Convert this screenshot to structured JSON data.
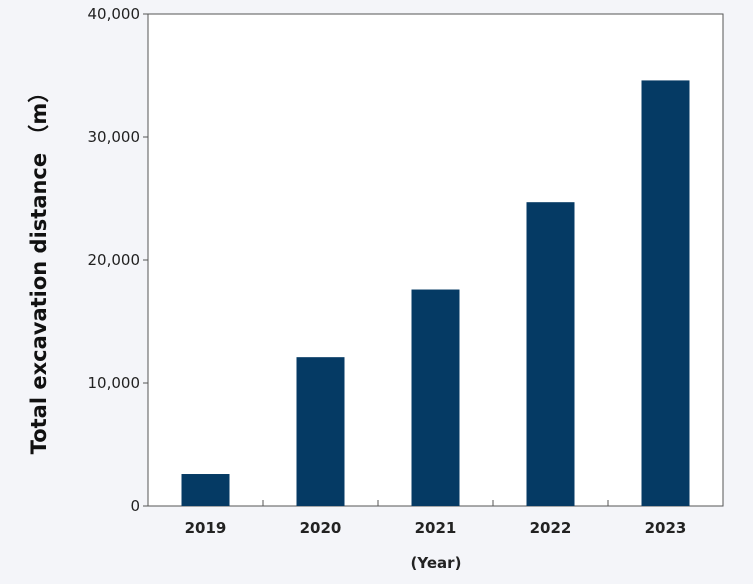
{
  "chart_data": {
    "type": "bar",
    "categories": [
      "2019",
      "2020",
      "2021",
      "2022",
      "2023"
    ],
    "values": [
      2600,
      12100,
      17600,
      24700,
      34600
    ],
    "title": "",
    "xlabel": "(Year)",
    "ylabel": "Total excavation distance （m）",
    "ylim": [
      0,
      40000
    ],
    "yticks": [
      0,
      10000,
      20000,
      30000,
      40000
    ],
    "ytick_labels": [
      "0",
      "10,000",
      "20,000",
      "30,000",
      "40,000"
    ],
    "grid": false,
    "legend": "none",
    "colors": {
      "bar": "#053a64",
      "background": "#f4f5f9",
      "plot_background": "#ffffff",
      "axis": "#555555"
    }
  }
}
